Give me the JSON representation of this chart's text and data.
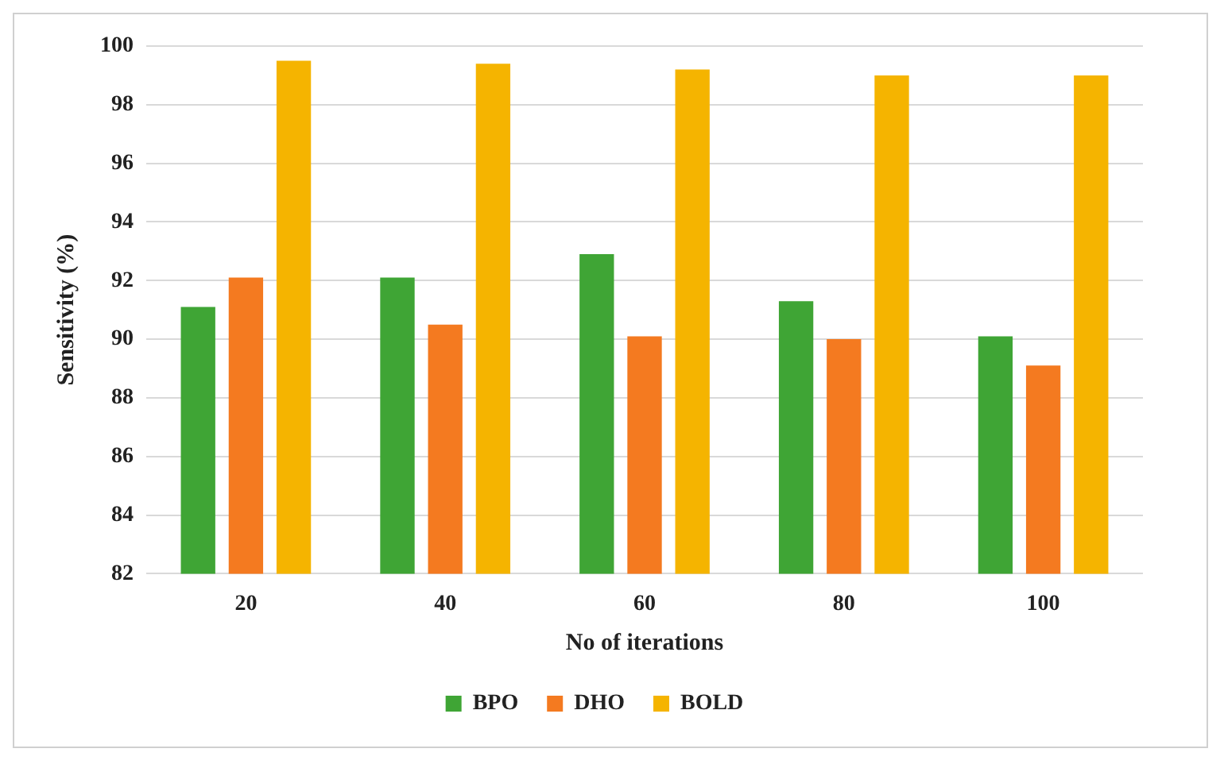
{
  "chart_data": {
    "type": "bar",
    "xlabel": "No of iterations",
    "ylabel": "Sensitivity (%)",
    "categories": [
      "20",
      "40",
      "60",
      "80",
      "100"
    ],
    "series": [
      {
        "name": "BPO",
        "color": "#3fa535",
        "values": [
          91.1,
          92.1,
          92.9,
          91.3,
          90.1
        ]
      },
      {
        "name": "DHO",
        "color": "#f47a20",
        "values": [
          92.1,
          90.5,
          90.1,
          90.0,
          89.1
        ]
      },
      {
        "name": "BOLD",
        "color": "#f5b400",
        "values": [
          99.5,
          99.4,
          99.2,
          99.0,
          99.0
        ]
      }
    ],
    "ylim": [
      82,
      100
    ],
    "yticks": [
      82,
      84,
      86,
      88,
      90,
      92,
      94,
      96,
      98,
      100
    ],
    "grid": "y",
    "legend": "bottom"
  }
}
